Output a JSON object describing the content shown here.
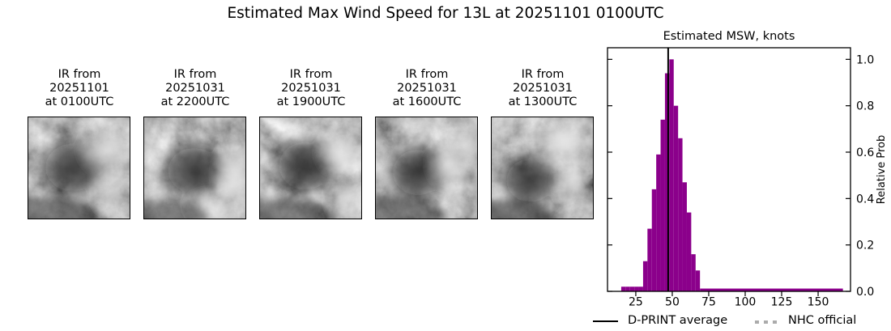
{
  "figure": {
    "title": "Estimated Max Wind Speed for 13L at 20251101 0100UTC"
  },
  "panels": [
    {
      "line1": "IR from",
      "line2": "20251101",
      "line3": "at 0100UTC"
    },
    {
      "line1": "IR from",
      "line2": "20251031",
      "line3": "at 2200UTC"
    },
    {
      "line1": "IR from",
      "line2": "20251031",
      "line3": "at 1900UTC"
    },
    {
      "line1": "IR from",
      "line2": "20251031",
      "line3": "at 1600UTC"
    },
    {
      "line1": "IR from",
      "line2": "20251031",
      "line3": "at 1300UTC"
    }
  ],
  "chart_data": {
    "type": "bar",
    "title": "Estimated MSW, knots",
    "ylabel_right": "Relative Prob",
    "xlabel": "",
    "xlim": [
      5.6,
      172.2
    ],
    "ylim": [
      0,
      1.05
    ],
    "xticks": [
      25,
      50,
      75,
      100,
      125,
      150
    ],
    "yticks": [
      "0.0",
      "0.2",
      "0.4",
      "0.6",
      "0.8",
      "1.0"
    ],
    "grid": false,
    "bar_color": "#8B008B",
    "bin_width": 3,
    "bins": [
      {
        "start": 15,
        "prob": 0.02
      },
      {
        "start": 18,
        "prob": 0.02
      },
      {
        "start": 21,
        "prob": 0.02
      },
      {
        "start": 24,
        "prob": 0.02
      },
      {
        "start": 27,
        "prob": 0.02
      },
      {
        "start": 30,
        "prob": 0.13
      },
      {
        "start": 33,
        "prob": 0.27
      },
      {
        "start": 36,
        "prob": 0.44
      },
      {
        "start": 39,
        "prob": 0.59
      },
      {
        "start": 42,
        "prob": 0.74
      },
      {
        "start": 45,
        "prob": 0.94
      },
      {
        "start": 48,
        "prob": 1.0
      },
      {
        "start": 51,
        "prob": 0.8
      },
      {
        "start": 54,
        "prob": 0.66
      },
      {
        "start": 57,
        "prob": 0.47
      },
      {
        "start": 60,
        "prob": 0.34
      },
      {
        "start": 63,
        "prob": 0.16
      },
      {
        "start": 66,
        "prob": 0.09
      }
    ],
    "tail": {
      "start": 69,
      "end": 167,
      "prob": 0.012
    },
    "dprint_average": 47.2,
    "average_line_color": "#000000",
    "nhc_color": "#ababab",
    "legend_position": "below",
    "legend": [
      {
        "label": "D-PRINT average",
        "style": "solid",
        "color": "#000000"
      },
      {
        "label": "NHC official",
        "style": "dashed",
        "color": "#ababab"
      }
    ]
  }
}
